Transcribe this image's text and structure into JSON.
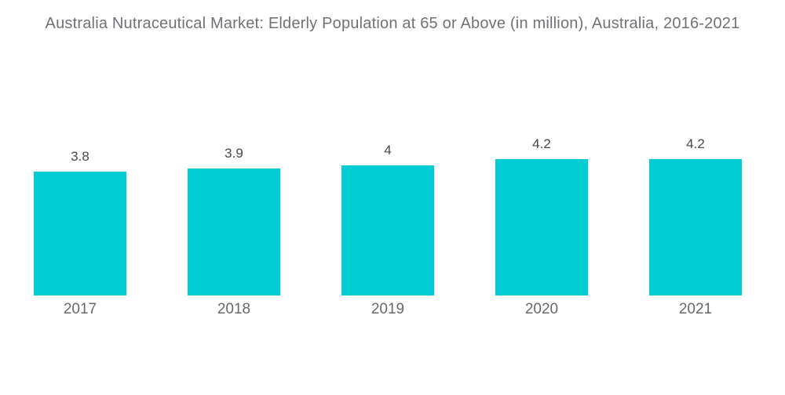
{
  "title": "Australia Nutraceutical Market: Elderly Population at 65 or Above (in million), Australia, 2016-2021",
  "chart_data": {
    "type": "bar",
    "title": "Australia Nutraceutical Market: Elderly Population at 65 or Above (in million), Australia, 2016-2021",
    "categories": [
      "2017",
      "2018",
      "2019",
      "2020",
      "2021"
    ],
    "values": [
      3.8,
      3.9,
      4,
      4.2,
      4.2
    ],
    "value_labels": [
      "3.8",
      "3.9",
      "4",
      "4.2",
      "4.2"
    ],
    "xlabel": "",
    "ylabel": "",
    "ylim": [
      0,
      4.5
    ],
    "grid": false,
    "legend": false,
    "bar_color": "#00CCD3",
    "background_color": "#ffffff"
  },
  "colors": {
    "bar": "#00CCD3",
    "title_text": "#6f7276",
    "value_label_text": "#46484b",
    "category_label_text": "#66686b",
    "background": "#ffffff"
  }
}
